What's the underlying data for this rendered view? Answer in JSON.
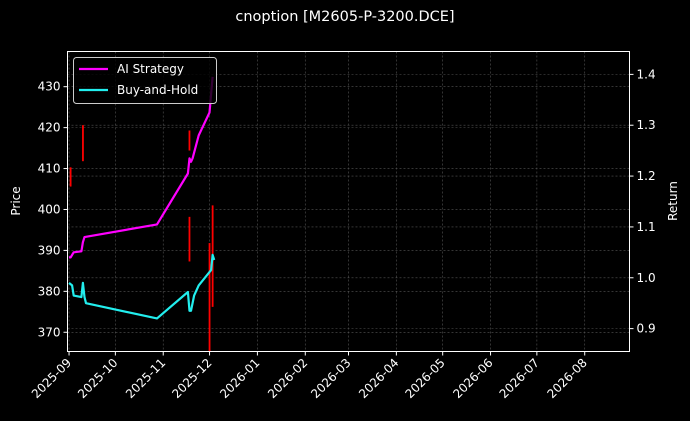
{
  "chart_data": {
    "type": "line",
    "title": "cnoption [M2605-P-3200.DCE]",
    "xlabel": "",
    "ylabel": "Price",
    "y2label": "Return",
    "ylim": [
      365.3,
      438.6
    ],
    "y2lim": [
      0.855,
      1.445
    ],
    "xlim": [
      "2025-08-31",
      "2026-08-30"
    ],
    "grid": true,
    "legend_position": "upper left",
    "x_ticks": [
      "2025-09",
      "2025-10",
      "2025-11",
      "2025-12",
      "2026-01",
      "2026-02",
      "2026-03",
      "2026-04",
      "2026-05",
      "2026-06",
      "2026-07",
      "2026-08"
    ],
    "y_ticks": [
      370,
      380,
      390,
      400,
      410,
      420,
      430
    ],
    "y2_ticks": [
      0.9,
      1.0,
      1.1,
      1.2,
      1.3,
      1.4
    ],
    "series": [
      {
        "name": "AI Strategy",
        "axis": "right",
        "color": "#ff00ff",
        "points": [
          [
            "2025-09-01",
            1.04
          ],
          [
            "2025-09-02",
            1.04
          ],
          [
            "2025-09-03",
            1.045
          ],
          [
            "2025-09-04",
            1.05
          ],
          [
            "2025-09-09",
            1.052
          ],
          [
            "2025-09-10",
            1.07
          ],
          [
            "2025-09-11",
            1.08
          ],
          [
            "2025-10-28",
            1.105
          ],
          [
            "2025-11-17",
            1.205
          ],
          [
            "2025-11-18",
            1.235
          ],
          [
            "2025-11-19",
            1.228
          ],
          [
            "2025-11-20",
            1.235
          ],
          [
            "2025-11-24",
            1.28
          ],
          [
            "2025-12-01",
            1.325
          ],
          [
            "2025-12-03",
            1.395
          ]
        ]
      },
      {
        "name": "Buy-and-Hold",
        "axis": "right",
        "color": "#22eeee",
        "points": [
          [
            "2025-09-01",
            0.99
          ],
          [
            "2025-09-03",
            0.985
          ],
          [
            "2025-09-04",
            0.965
          ],
          [
            "2025-09-09",
            0.962
          ],
          [
            "2025-09-10",
            0.99
          ],
          [
            "2025-09-11",
            0.962
          ],
          [
            "2025-09-12",
            0.95
          ],
          [
            "2025-10-28",
            0.92
          ],
          [
            "2025-11-17",
            0.972
          ],
          [
            "2025-11-18",
            0.935
          ],
          [
            "2025-11-19",
            0.935
          ],
          [
            "2025-11-21",
            0.965
          ],
          [
            "2025-11-24",
            0.985
          ],
          [
            "2025-12-02",
            1.015
          ],
          [
            "2025-12-03",
            1.045
          ],
          [
            "2025-12-04",
            1.035
          ]
        ]
      }
    ],
    "price_bars": {
      "name": "Price range (candles)",
      "axis": "left",
      "color": "#ff0000",
      "bars": [
        {
          "date": "2025-09-02",
          "low": 405.6,
          "high": 410.3
        },
        {
          "date": "2025-09-10",
          "low": 411.8,
          "high": 420.6
        },
        {
          "date": "2025-11-18",
          "low": 387.3,
          "high": 398.2
        },
        {
          "date": "2025-11-18",
          "low": 414.4,
          "high": 419.3
        },
        {
          "date": "2025-12-01",
          "low": 365.3,
          "high": 391.8
        },
        {
          "date": "2025-12-03",
          "low": 376.2,
          "high": 401.0
        }
      ]
    }
  },
  "legend": {
    "items": [
      {
        "label": "AI Strategy",
        "color": "#ff00ff"
      },
      {
        "label": "Buy-and-Hold",
        "color": "#22eeee"
      }
    ]
  }
}
